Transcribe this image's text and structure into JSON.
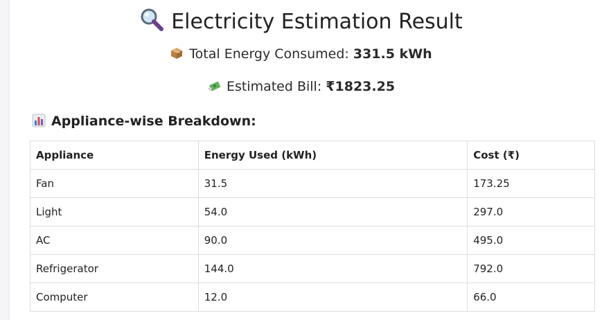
{
  "page": {
    "title": "Electricity Estimation Result",
    "title_icon": "magnifier-icon",
    "energy": {
      "icon": "package-icon",
      "label": "Total Energy Consumed: ",
      "value": "331.5 kWh"
    },
    "bill": {
      "icon": "money-with-wings-icon",
      "label": "Estimated Bill: ",
      "value": "₹1823.25"
    },
    "breakdown": {
      "icon": "bar-chart-icon",
      "label": "Appliance-wise Breakdown:"
    }
  },
  "table": {
    "headers": [
      "Appliance",
      "Energy Used (kWh)",
      "Cost (₹)"
    ],
    "rows": [
      [
        "Fan",
        "31.5",
        "173.25"
      ],
      [
        "Light",
        "54.0",
        "297.0"
      ],
      [
        "AC",
        "90.0",
        "495.0"
      ],
      [
        "Refrigerator",
        "144.0",
        "792.0"
      ],
      [
        "Computer",
        "12.0",
        "66.0"
      ]
    ]
  },
  "colors": {
    "background": "#f4f5f7",
    "card": "#ffffff",
    "border": "#dddddd",
    "text": "#222222"
  }
}
